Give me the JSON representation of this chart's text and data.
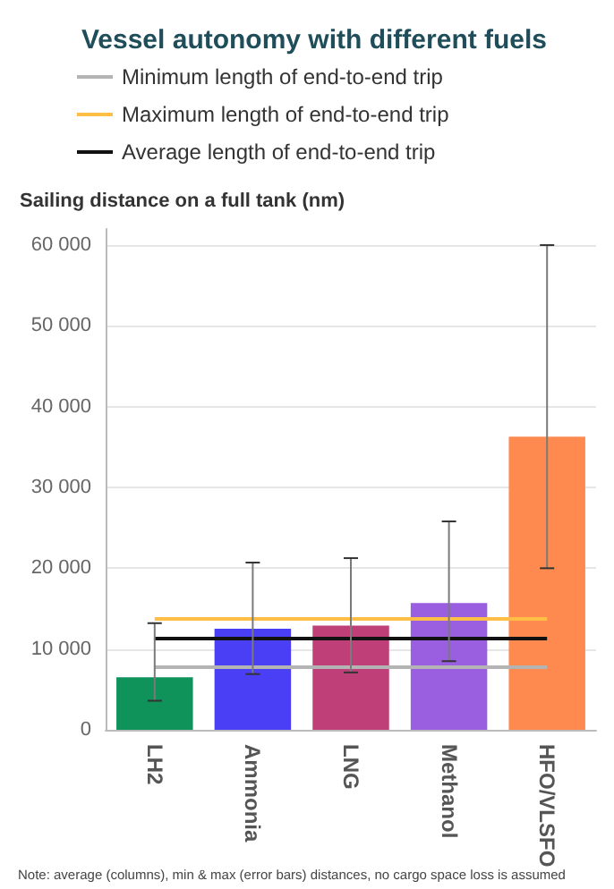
{
  "chart_data": {
    "type": "bar",
    "title": "Vessel autonomy with different fuels",
    "ylabel": "Sailing distance on a full tank (nm)",
    "categories": [
      "LH2",
      "Ammonia",
      "LNG",
      "Methanol",
      "HFO/VLSFO"
    ],
    "values": [
      6500,
      12500,
      12900,
      15700,
      36300
    ],
    "colors": [
      "#10935a",
      "#4a3ff5",
      "#bf3f78",
      "#9a5fe0",
      "#ff8a4f"
    ],
    "errors": [
      [
        3600,
        13200
      ],
      [
        6900,
        20700
      ],
      [
        7100,
        21250
      ],
      [
        8500,
        25800
      ],
      [
        20000,
        60000
      ]
    ],
    "ylim": [
      0,
      62000
    ],
    "yticks": [
      0,
      {
        "value": 10000,
        "label": "10 000"
      },
      {
        "value": 20000,
        "label": "20 000"
      },
      {
        "value": 30000,
        "label": "30 000"
      },
      {
        "value": 40000,
        "label": "40 000"
      },
      {
        "value": 50000,
        "label": "50 000"
      },
      {
        "value": 60000,
        "label": "60 000"
      }
    ],
    "grid": "y",
    "legend": "top left",
    "ref_lines": [
      {
        "axis": "y",
        "value": 7850,
        "label": "Minimum length of end-to-end trip",
        "color": "#b4b4b4"
      },
      {
        "axis": "y",
        "value": 13800,
        "label": "Maximum length of end-to-end trip",
        "color": "#ffbf47"
      },
      {
        "axis": "y",
        "value": 11400,
        "label": "Average length of end-to-end trip",
        "color": "#111111"
      }
    ],
    "annotations": [
      "Note: average (columns), min & max (error bars) distances, no cargo space loss is assumed"
    ]
  }
}
